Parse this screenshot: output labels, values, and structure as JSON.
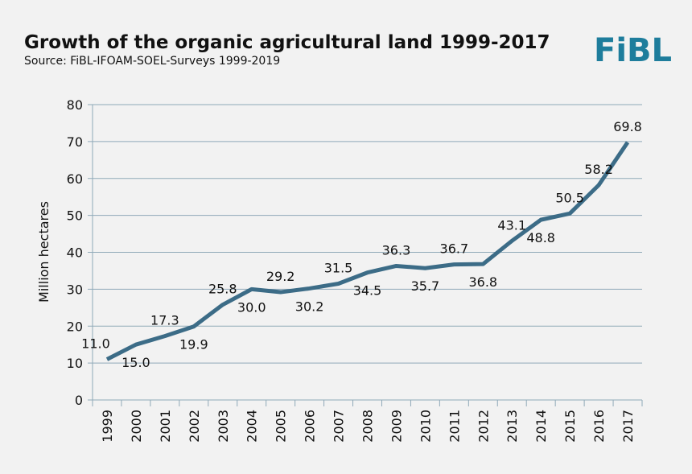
{
  "chart_data": {
    "type": "line",
    "title": "Growth of the organic agricultural land 1999-2017",
    "subtitle": "Source: FiBL-IFOAM-SOEL-Surveys 1999-2019",
    "logo": "FiBL",
    "y_label": "Million hectares",
    "categories": [
      "1999",
      "2000",
      "2001",
      "2002",
      "2003",
      "2004",
      "2005",
      "2006",
      "2007",
      "2008",
      "2009",
      "2010",
      "2011",
      "2012",
      "2013",
      "2014",
      "2015",
      "2016",
      "2017"
    ],
    "series": [
      {
        "name": "Organic agricultural land",
        "color": "#3c6c87",
        "values": [
          11.0,
          15.0,
          17.3,
          19.9,
          25.8,
          30.0,
          29.2,
          30.2,
          31.5,
          34.5,
          36.3,
          35.7,
          36.7,
          36.8,
          43.1,
          48.8,
          50.5,
          58.2,
          69.8
        ],
        "value_labels": [
          "11.0",
          "15.0",
          "17.3",
          "19.9",
          "25.8",
          "30.0",
          "29.2",
          "30.2",
          "31.5",
          "34.5",
          "36.3",
          "35.7",
          "36.7",
          "36.8",
          "43.1",
          "48.8",
          "50.5",
          "58.2",
          "69.8"
        ]
      }
    ],
    "ylim": [
      0,
      80
    ],
    "yticks": [
      0,
      10,
      20,
      30,
      40,
      50,
      60,
      70,
      80
    ],
    "grid": true
  }
}
